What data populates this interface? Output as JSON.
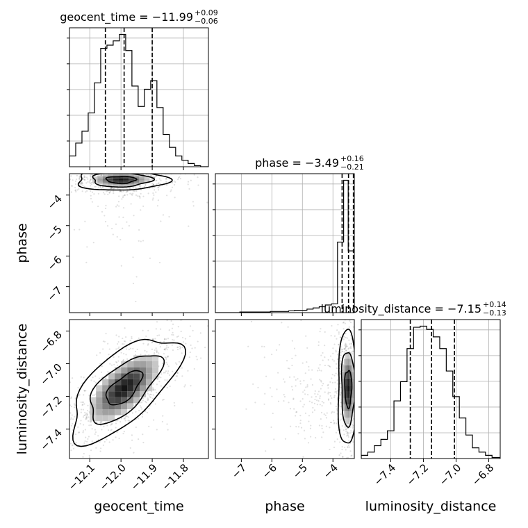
{
  "chart_data": {
    "type": "corner",
    "parameters": [
      "geocent_time",
      "phase",
      "luminosity_distance"
    ],
    "titles": [
      {
        "name": "geocent_time",
        "median": "−11.99",
        "plus": "+0.09",
        "minus": "−0.06"
      },
      {
        "name": "phase",
        "median": "−3.49",
        "plus": "+0.16",
        "minus": "−0.21"
      },
      {
        "name": "luminosity_distance",
        "median": "−7.15",
        "plus": "+0.14",
        "minus": "−0.13"
      }
    ],
    "ranges": {
      "geocent_time": [
        -12.165,
        -11.72
      ],
      "phase": [
        -7.85,
        -3.3
      ],
      "luminosity_distance": [
        -7.58,
        -6.73
      ]
    },
    "ticks": {
      "geocent_time": {
        "values": [
          -12.1,
          -12.0,
          -11.9,
          -11.8
        ],
        "labels": [
          "−12.1",
          "−12.0",
          "−11.9",
          "−11.8"
        ]
      },
      "phase": {
        "values": [
          -7,
          -6,
          -5,
          -4
        ],
        "labels": [
          "−7",
          "−6",
          "−5",
          "−4"
        ]
      },
      "luminosity_distance": {
        "values": [
          -7.4,
          -7.2,
          -7.0,
          -6.8
        ],
        "labels": [
          "−7.4",
          "−7.2",
          "−7.0",
          "−6.8"
        ]
      }
    },
    "quantiles": {
      "geocent_time": [
        -12.05,
        -11.99,
        -11.9
      ],
      "phase": [
        -3.7,
        -3.49,
        -3.33
      ],
      "luminosity_distance": [
        -7.28,
        -7.15,
        -7.01
      ]
    },
    "histograms": {
      "geocent_time": {
        "edges": [
          -12.165,
          -12.145,
          -12.125,
          -12.105,
          -12.085,
          -12.065,
          -12.045,
          -12.025,
          -12.005,
          -11.985,
          -11.965,
          -11.945,
          -11.925,
          -11.905,
          -11.885,
          -11.865,
          -11.845,
          -11.825,
          -11.805,
          -11.785,
          -11.765,
          -11.745,
          -11.72
        ],
        "counts": [
          10,
          22,
          33,
          50,
          78,
          110,
          113,
          117,
          123,
          108,
          75,
          56,
          72,
          80,
          55,
          30,
          18,
          10,
          6,
          3,
          1,
          0
        ]
      },
      "phase": {
        "edges": [
          -7.85,
          -7.65,
          -7.45,
          -7.25,
          -7.05,
          -6.85,
          -6.65,
          -6.45,
          -6.25,
          -6.05,
          -5.85,
          -5.65,
          -5.45,
          -5.25,
          -5.05,
          -4.85,
          -4.65,
          -4.45,
          -4.25,
          -4.05,
          -3.85,
          -3.65,
          -3.5,
          -3.3
        ],
        "counts": [
          0,
          0,
          0,
          0,
          1,
          1,
          1,
          1,
          1,
          2,
          2,
          2,
          3,
          4,
          4,
          6,
          8,
          10,
          13,
          15,
          120,
          225,
          105
        ]
      },
      "luminosity_distance": {
        "edges": [
          -7.58,
          -7.54,
          -7.5,
          -7.46,
          -7.42,
          -7.38,
          -7.34,
          -7.3,
          -7.26,
          -7.22,
          -7.18,
          -7.14,
          -7.1,
          -7.06,
          -7.02,
          -6.98,
          -6.94,
          -6.9,
          -6.86,
          -6.82,
          -6.78,
          -6.73
        ],
        "counts": [
          3,
          6,
          12,
          18,
          26,
          54,
          72,
          103,
          123,
          124,
          121,
          114,
          103,
          82,
          58,
          38,
          22,
          10,
          6,
          3,
          1
        ]
      }
    },
    "density": {
      "geocent_time|phase": {
        "center": [
          -12.0,
          -3.5
        ],
        "sd": [
          0.05,
          0.12
        ],
        "rho": 0.0,
        "n": 700,
        "tail": 0.12
      },
      "geocent_time|luminosity_distance": {
        "center": [
          -11.99,
          -7.15
        ],
        "sd": [
          0.06,
          0.11
        ],
        "rho": 0.65,
        "n": 900,
        "tail": 0.0
      },
      "phase|luminosity_distance": {
        "center": [
          -3.5,
          -7.15
        ],
        "sd": [
          0.12,
          0.12
        ],
        "rho": 0.0,
        "n": 800,
        "tail": 0.3
      }
    },
    "contour_levels": [
      "39%",
      "86%",
      "99%"
    ],
    "grid": true
  }
}
